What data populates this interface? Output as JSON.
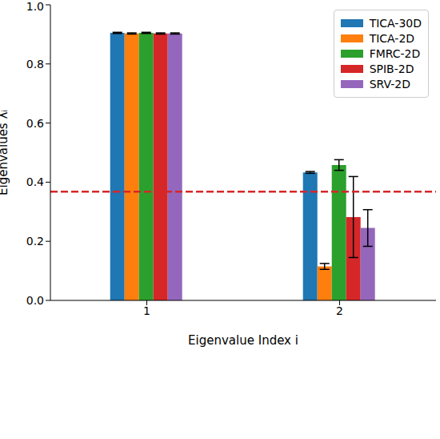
{
  "chart_data": {
    "type": "bar",
    "x_label": "Eigenvalue Index i",
    "y_label": "Eigenvalues λᵢ",
    "categories": [
      "1",
      "2"
    ],
    "series": [
      {
        "name": "TICA-30D",
        "color": "#1f77b4",
        "values": [
          0.905,
          0.433
        ],
        "errors": [
          0.002,
          0.003
        ]
      },
      {
        "name": "TICA-2D",
        "color": "#ff7f0e",
        "values": [
          0.903,
          0.115
        ],
        "errors": [
          0.002,
          0.01
        ]
      },
      {
        "name": "FMRC-2D",
        "color": "#2ca02c",
        "values": [
          0.905,
          0.458
        ],
        "errors": [
          0.002,
          0.018
        ]
      },
      {
        "name": "SPIB-2D",
        "color": "#d62728",
        "values": [
          0.903,
          0.282
        ],
        "errors": [
          0.002,
          0.137
        ]
      },
      {
        "name": "SRV-2D",
        "color": "#9467bd",
        "values": [
          0.903,
          0.245
        ],
        "errors": [
          0.002,
          0.062
        ]
      }
    ],
    "ylim": [
      0,
      1
    ],
    "yticks": [
      {
        "value": 0,
        "label": "0.0"
      },
      0.2,
      0.4,
      0.6,
      0.8,
      {
        "value": 1,
        "label": "1.0"
      }
    ],
    "reference_line": {
      "value": 0.368,
      "color": "#d62728",
      "line_style": "dashed"
    },
    "legend": "upper right"
  }
}
